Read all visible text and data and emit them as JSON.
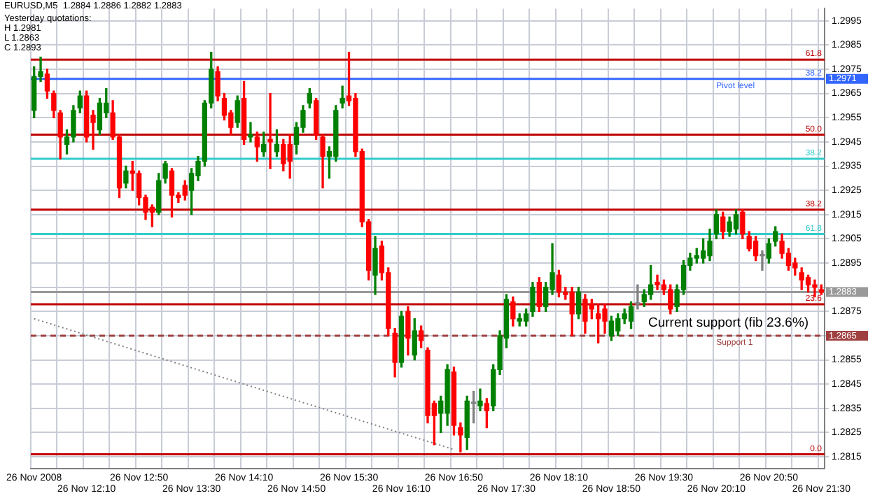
{
  "chart_data": {
    "type": "candlestick",
    "title": "EURUSD,M5  1.2884 1.2886 1.2882 1.2883",
    "annotations": [
      "Yesterday quotations:",
      "H 1.2981",
      "L 1.2863",
      "C 1.2893",
      {
        "text": "Pivot level",
        "x": "26 Nov 20:10",
        "y": 1.2971
      },
      {
        "text": "Support 1",
        "x": "26 Nov 20:10",
        "y": 1.2865
      },
      "Current support (fib 23.6%)",
      "1.2971",
      "1.2883",
      "1.2865",
      "61.8",
      "38.2",
      "50.0",
      "38.2",
      "38.2",
      "61.8",
      "23.6",
      "0.0"
    ],
    "categories": [
      "26 Nov 2008",
      null,
      null,
      null,
      null,
      null,
      null,
      null,
      "26 Nov 12:10",
      null,
      null,
      null,
      null,
      null,
      null,
      null,
      "26 Nov 12:50",
      null,
      null,
      null,
      null,
      null,
      null,
      null,
      "26 Nov 13:30",
      null,
      null,
      null,
      null,
      null,
      null,
      null,
      "26 Nov 14:10",
      null,
      null,
      null,
      null,
      null,
      null,
      null,
      "26 Nov 14:50",
      null,
      null,
      null,
      null,
      null,
      null,
      null,
      "26 Nov 15:30",
      null,
      null,
      null,
      null,
      null,
      null,
      null,
      "26 Nov 16:10",
      null,
      null,
      null,
      null,
      null,
      null,
      null,
      "26 Nov 16:50",
      null,
      null,
      null,
      null,
      null,
      null,
      null,
      "26 Nov 17:30",
      null,
      null,
      null,
      null,
      null,
      null,
      null,
      "26 Nov 18:10",
      null,
      null,
      null,
      null,
      null,
      null,
      null,
      "26 Nov 18:50",
      null,
      null,
      null,
      null,
      null,
      null,
      null,
      "26 Nov 19:30",
      null,
      null,
      null,
      null,
      null,
      null,
      null,
      "26 Nov 20:10",
      null,
      null,
      null,
      null,
      null,
      null,
      null,
      "26 Nov 20:50",
      null,
      null,
      null,
      null,
      null,
      null,
      null,
      "26 Nov 21:30"
    ],
    "ohlc": [
      [
        1.2958,
        1.2976,
        1.2955,
        1.2972
      ],
      [
        1.2972,
        1.298,
        1.297,
        1.2974
      ],
      [
        1.2973,
        1.2975,
        1.2963,
        1.2966
      ],
      [
        1.2965,
        1.2966,
        1.2955,
        1.2958
      ],
      [
        1.2957,
        1.2958,
        1.2938,
        1.2947
      ],
      [
        1.2944,
        1.295,
        1.294,
        1.2947
      ],
      [
        1.2947,
        1.296,
        1.2945,
        1.2958
      ],
      [
        1.2959,
        1.2966,
        1.2957,
        1.2964
      ],
      [
        1.2964,
        1.2966,
        1.2945,
        1.2947
      ],
      [
        1.2956,
        1.2958,
        1.2942,
        1.2953
      ],
      [
        1.295,
        1.2963,
        1.2948,
        1.2961
      ],
      [
        1.2957,
        1.2967,
        1.2955,
        1.2961
      ],
      [
        1.2957,
        1.2962,
        1.2946,
        1.2947
      ],
      [
        1.2947,
        1.2948,
        1.2922,
        1.2926
      ],
      [
        1.2928,
        1.2935,
        1.2926,
        1.2933
      ],
      [
        1.2933,
        1.2937,
        1.2925,
        1.2932
      ],
      [
        1.2932,
        1.2933,
        1.2919,
        1.2922
      ],
      [
        1.2922,
        1.2923,
        1.2913,
        1.2916
      ],
      [
        1.2918,
        1.2919,
        1.291,
        1.2916
      ],
      [
        1.2916,
        1.2932,
        1.2915,
        1.2929
      ],
      [
        1.293,
        1.2937,
        1.2928,
        1.2936
      ],
      [
        1.2933,
        1.2934,
        1.2914,
        1.2923
      ],
      [
        1.2923,
        1.2924,
        1.292,
        1.2922
      ],
      [
        1.2927,
        1.2929,
        1.2921,
        1.2923
      ],
      [
        1.2925,
        1.2934,
        1.2915,
        1.2932
      ],
      [
        1.2931,
        1.2939,
        1.2929,
        1.2937
      ],
      [
        1.2937,
        1.2962,
        1.2935,
        1.2961
      ],
      [
        1.2961,
        1.2982,
        1.2959,
        1.2975
      ],
      [
        1.2974,
        1.2976,
        1.2962,
        1.2964
      ],
      [
        1.2963,
        1.2965,
        1.2954,
        1.2956
      ],
      [
        1.2957,
        1.2958,
        1.2948,
        1.2951
      ],
      [
        1.2953,
        1.2964,
        1.2951,
        1.2962
      ],
      [
        1.2963,
        1.297,
        1.2944,
        1.2946
      ],
      [
        1.2947,
        1.2953,
        1.2945,
        1.2948
      ],
      [
        1.2947,
        1.2949,
        1.2937,
        1.2943
      ],
      [
        1.2941,
        1.2949,
        1.2939,
        1.2944
      ],
      [
        1.2946,
        1.2965,
        1.2934,
        1.2945
      ],
      [
        1.2941,
        1.295,
        1.2939,
        1.2944
      ],
      [
        1.2944,
        1.2946,
        1.2933,
        1.2936
      ],
      [
        1.2944,
        1.2948,
        1.293,
        1.2937
      ],
      [
        1.2944,
        1.2953,
        1.294,
        1.2951
      ],
      [
        1.2951,
        1.296,
        1.2949,
        1.2958
      ],
      [
        1.2961,
        1.2967,
        1.2959,
        1.2965
      ],
      [
        1.2962,
        1.2963,
        1.2946,
        1.2948
      ],
      [
        1.2947,
        1.2948,
        1.2926,
        1.2939
      ],
      [
        1.2939,
        1.2943,
        1.293,
        1.2941
      ],
      [
        1.2939,
        1.296,
        1.2937,
        1.2958
      ],
      [
        1.2961,
        1.2968,
        1.2959,
        1.2963
      ],
      [
        1.2964,
        1.2982,
        1.296,
        1.2962
      ],
      [
        1.2963,
        1.2965,
        1.2939,
        1.2941
      ],
      [
        1.2941,
        1.2942,
        1.291,
        1.2912
      ],
      [
        1.2912,
        1.2913,
        1.2888,
        1.2892
      ],
      [
        1.289,
        1.2906,
        1.2882,
        1.2901
      ],
      [
        1.2902,
        1.2904,
        1.2888,
        1.2891
      ],
      [
        1.2891,
        1.2893,
        1.2865,
        1.2868
      ],
      [
        1.2866,
        1.2868,
        1.2848,
        1.2854
      ],
      [
        1.2854,
        1.2875,
        1.2852,
        1.2873
      ],
      [
        1.2875,
        1.2877,
        1.2857,
        1.2864
      ],
      [
        1.2857,
        1.2872,
        1.2855,
        1.2867
      ],
      [
        1.2867,
        1.2869,
        1.286,
        1.2863
      ],
      [
        1.2859,
        1.286,
        1.2829,
        1.2832
      ],
      [
        1.2837,
        1.2838,
        1.282,
        1.2832
      ],
      [
        1.2833,
        1.284,
        1.2825,
        1.2838
      ],
      [
        1.2833,
        1.2853,
        1.2828,
        1.2851
      ],
      [
        1.285,
        1.2852,
        1.2824,
        1.2828
      ],
      [
        1.2827,
        1.2829,
        1.2817,
        1.2824
      ],
      [
        1.2823,
        1.284,
        1.2818,
        1.2838
      ],
      [
        1.2837,
        1.2842,
        1.2829,
        1.2837
      ],
      [
        1.2836,
        1.2843,
        1.2834,
        1.2838
      ],
      [
        1.2837,
        1.2839,
        1.2827,
        1.2834
      ],
      [
        1.2836,
        1.2853,
        1.2834,
        1.2851
      ],
      [
        1.2851,
        1.2867,
        1.2849,
        1.2865
      ],
      [
        1.2864,
        1.2882,
        1.286,
        1.288
      ],
      [
        1.2879,
        1.2881,
        1.2869,
        1.2872
      ],
      [
        1.2871,
        1.2874,
        1.2869,
        1.2872
      ],
      [
        1.2871,
        1.2876,
        1.2869,
        1.2874
      ],
      [
        1.2875,
        1.2887,
        1.2873,
        1.2885
      ],
      [
        1.2887,
        1.2889,
        1.2875,
        1.2877
      ],
      [
        1.2877,
        1.2887,
        1.2875,
        1.2885
      ],
      [
        1.2884,
        1.2903,
        1.2882,
        1.2891
      ],
      [
        1.289,
        1.2892,
        1.2881,
        1.2883
      ],
      [
        1.2883,
        1.2885,
        1.288,
        1.2882
      ],
      [
        1.2883,
        1.2885,
        1.2865,
        1.2874
      ],
      [
        1.2874,
        1.2885,
        1.2872,
        1.2883
      ],
      [
        1.288,
        1.2882,
        1.2866,
        1.2871
      ],
      [
        1.2878,
        1.288,
        1.2872,
        1.2876
      ],
      [
        1.2874,
        1.2878,
        1.2862,
        1.2872
      ],
      [
        1.2876,
        1.2878,
        1.2866,
        1.2871
      ],
      [
        1.2865,
        1.2873,
        1.2863,
        1.2871
      ],
      [
        1.2867,
        1.2874,
        1.2865,
        1.2872
      ],
      [
        1.2872,
        1.2876,
        1.287,
        1.2874
      ],
      [
        1.2871,
        1.2879,
        1.2868,
        1.2877
      ],
      [
        1.2878,
        1.2886,
        1.2876,
        1.2878
      ],
      [
        1.2879,
        1.2884,
        1.2877,
        1.2882
      ],
      [
        1.2882,
        1.2894,
        1.288,
        1.2886
      ],
      [
        1.2887,
        1.289,
        1.2884,
        1.2886
      ],
      [
        1.2886,
        1.2888,
        1.2882,
        1.2884
      ],
      [
        1.2884,
        1.2886,
        1.2874,
        1.2876
      ],
      [
        1.2877,
        1.2886,
        1.2875,
        1.2884
      ],
      [
        1.2884,
        1.2896,
        1.2882,
        1.2894
      ],
      [
        1.2894,
        1.2899,
        1.2892,
        1.2897
      ],
      [
        1.2897,
        1.2901,
        1.2895,
        1.2898
      ],
      [
        1.2897,
        1.2905,
        1.2895,
        1.29
      ],
      [
        1.2898,
        1.2909,
        1.2896,
        1.2904
      ],
      [
        1.2907,
        1.2917,
        1.2905,
        1.2915
      ],
      [
        1.2914,
        1.2916,
        1.2905,
        1.2908
      ],
      [
        1.2908,
        1.2914,
        1.2906,
        1.2912
      ],
      [
        1.2909,
        1.2917,
        1.2907,
        1.2915
      ],
      [
        1.2916,
        1.2917,
        1.2905,
        1.2907
      ],
      [
        1.2906,
        1.2908,
        1.29,
        1.2901
      ],
      [
        1.2904,
        1.2906,
        1.2896,
        1.2898
      ],
      [
        1.2898,
        1.29,
        1.2892,
        1.2898
      ],
      [
        1.2897,
        1.2905,
        1.2895,
        1.2903
      ],
      [
        1.2904,
        1.291,
        1.2902,
        1.2908
      ],
      [
        1.2904,
        1.2907,
        1.2897,
        1.2899
      ],
      [
        1.2899,
        1.2901,
        1.2892,
        1.2894
      ],
      [
        1.2895,
        1.2897,
        1.289,
        1.2893
      ],
      [
        1.2891,
        1.2893,
        1.2884,
        1.2888
      ],
      [
        1.2889,
        1.289,
        1.2883,
        1.2886
      ],
      [
        1.2886,
        1.2888,
        1.2881,
        1.2885
      ],
      [
        1.2884,
        1.2886,
        1.2882,
        1.2883
      ]
    ],
    "colors": [
      "#008000",
      "#008000",
      "#ff0000",
      "#ff0000",
      "#ff0000",
      "#008000",
      "#008000",
      "#008000",
      "#ff0000",
      "#ff0000",
      "#008000",
      "#008000",
      "#ff0000",
      "#ff0000",
      "#008000",
      "#ff0000",
      "#ff0000",
      "#ff0000",
      "#ff0000",
      "#008000",
      "#008000",
      "#ff0000",
      "#ff0000",
      "#ff0000",
      "#008000",
      "#008000",
      "#008000",
      "#008000",
      "#ff0000",
      "#ff0000",
      "#ff0000",
      "#008000",
      "#ff0000",
      "#008000",
      "#ff0000",
      "#008000",
      "#ff0000",
      "#008000",
      "#ff0000",
      "#ff0000",
      "#008000",
      "#008000",
      "#008000",
      "#ff0000",
      "#ff0000",
      "#008000",
      "#008000",
      "#008000",
      "#ff0000",
      "#ff0000",
      "#ff0000",
      "#ff0000",
      "#008000",
      "#ff0000",
      "#ff0000",
      "#ff0000",
      "#008000",
      "#ff0000",
      "#008000",
      "#ff0000",
      "#ff0000",
      "#ff0000",
      "#008000",
      "#008000",
      "#ff0000",
      "#ff0000",
      "#008000",
      "#808080",
      "#008000",
      "#ff0000",
      "#008000",
      "#008000",
      "#008000",
      "#ff0000",
      "#008000",
      "#008000",
      "#008000",
      "#ff0000",
      "#008000",
      "#008000",
      "#ff0000",
      "#ff0000",
      "#ff0000",
      "#008000",
      "#ff0000",
      "#ff0000",
      "#ff0000",
      "#ff0000",
      "#008000",
      "#008000",
      "#008000",
      "#008000",
      "#808080",
      "#008000",
      "#008000",
      "#ff0000",
      "#ff0000",
      "#ff0000",
      "#008000",
      "#008000",
      "#008000",
      "#008000",
      "#008000",
      "#008000",
      "#008000",
      "#ff0000",
      "#008000",
      "#008000",
      "#ff0000",
      "#ff0000",
      "#ff0000",
      "#808080",
      "#008000",
      "#008000",
      "#ff0000",
      "#ff0000",
      "#ff0000",
      "#ff0000",
      "#ff0000",
      "#ff0000",
      "#ff0000"
    ],
    "series": [
      {
        "type": "line",
        "color": "#808080",
        "line_style": "dotted",
        "x": [
          "26 Nov 2008",
          "26 Nov 16:50"
        ],
        "values": [
          1.2872,
          1.2818
        ]
      }
    ],
    "ylim": [
      1.281,
      1.3
    ],
    "yticks": [
      1.2995,
      1.2985,
      1.2975,
      1.2965,
      1.2955,
      1.2945,
      1.2935,
      1.2925,
      1.2915,
      1.2905,
      1.2895,
      {
        "value": 1.2885,
        "label": null
      },
      1.2875,
      {
        "value": 1.2865,
        "label": null
      },
      1.2855,
      1.2845,
      1.2835,
      1.2825,
      1.2815
    ],
    "ref_lines": [
      {
        "axis": "y",
        "value": 1.2979,
        "color": "#c00000"
      },
      {
        "axis": "y",
        "value": 1.2971,
        "color": "#3366ff"
      },
      {
        "axis": "y",
        "value": 1.2948,
        "color": "#c00000"
      },
      {
        "axis": "y",
        "value": 1.2938,
        "color": "#33cccc"
      },
      {
        "axis": "y",
        "value": 1.2917,
        "color": "#c00000"
      },
      {
        "axis": "y",
        "value": 1.2907,
        "color": "#33cccc"
      },
      {
        "axis": "y",
        "value": 1.2883,
        "color": "#999999"
      },
      {
        "axis": "y",
        "value": 1.2878,
        "color": "#c00000"
      },
      {
        "axis": "y",
        "value": 1.2865,
        "color": "#a04040",
        "line_style": "dashed"
      },
      {
        "axis": "y",
        "value": 1.2816,
        "color": "#c00000"
      }
    ],
    "grid": true,
    "legend": false
  }
}
